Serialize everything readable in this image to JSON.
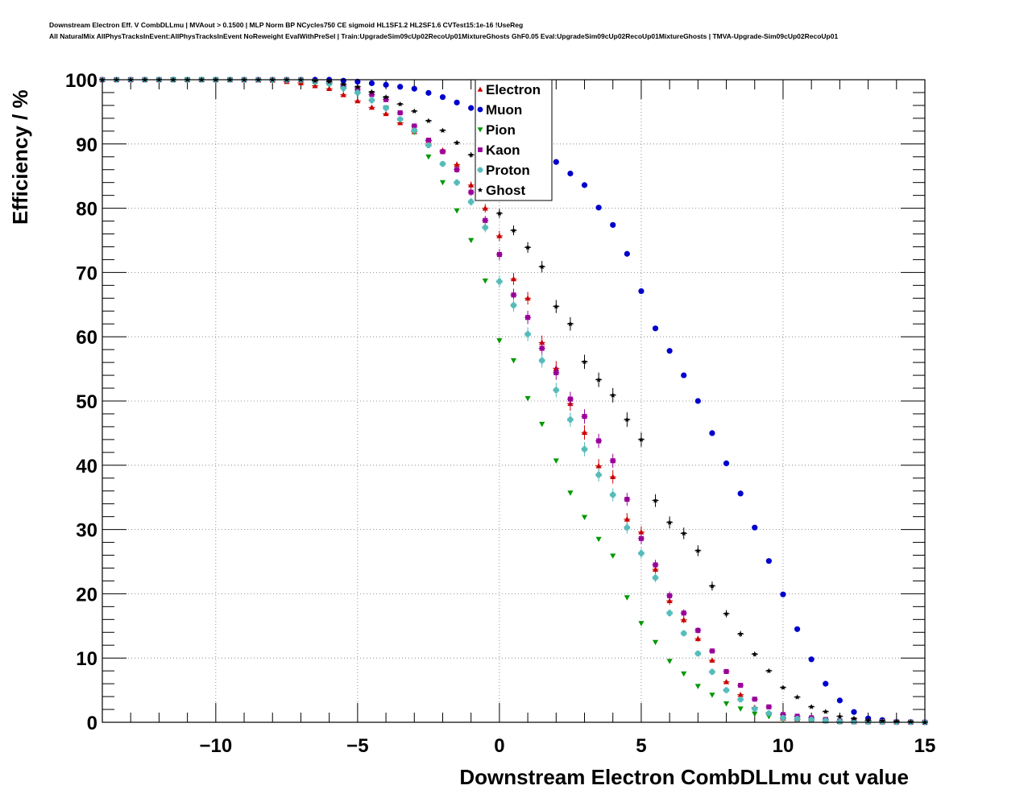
{
  "title_lines": [
    "Downstream Electron Eff. V CombDLLmu | MVAout > 0.1500 | MLP Norm BP NCycles750 CE sigmoid HL1SF1.2 HL2SF1.6 CVTest15:1e-16 !UseReg",
    "All NaturalMix AllPhysTracksInEvent:AllPhysTracksInEvent NoReweight EvalWithPreSel | Train:UpgradeSim09cUp02RecoUp01MixtureGhosts GhF0.05 Eval:UpgradeSim09cUp02RecoUp01MixtureGhosts | TMVA-Upgrade-Sim09cUp02RecoUp01"
  ],
  "chart_data": {
    "type": "scatter",
    "xlabel": "Downstream Electron CombDLLmu cut value",
    "ylabel": "Efficiency / %",
    "xlim": [
      -14,
      15
    ],
    "ylim": [
      0,
      100
    ],
    "xticks": [
      -10,
      -5,
      0,
      5,
      10,
      15
    ],
    "xtick_labels": [
      "−10",
      "−5",
      "0",
      "5",
      "10",
      "15"
    ],
    "yticks": [
      0,
      10,
      20,
      30,
      40,
      50,
      60,
      70,
      80,
      90,
      100
    ],
    "grid": true,
    "legend_position": "top-center",
    "series": [
      {
        "name": "Electron",
        "color": "#cc0000",
        "marker": "triangle-up",
        "has_error_bars": true,
        "points": [
          [
            -14,
            100
          ],
          [
            -12,
            100
          ],
          [
            -10,
            100
          ],
          [
            -8,
            99.9
          ],
          [
            -7,
            99.5
          ],
          [
            -6,
            98.6
          ],
          [
            -5,
            96.7
          ],
          [
            -4,
            94.7
          ],
          [
            -3,
            91.9
          ],
          [
            -2.5,
            90.5
          ],
          [
            -2,
            89
          ],
          [
            -1.5,
            86.8
          ],
          [
            -1,
            83.6
          ],
          [
            -0.5,
            80
          ],
          [
            0,
            75.7
          ],
          [
            0.25,
            72.4
          ],
          [
            0.5,
            69
          ],
          [
            1,
            66
          ],
          [
            1.5,
            59.1
          ],
          [
            2,
            55.1
          ],
          [
            2.25,
            51.3
          ],
          [
            2.75,
            47.9
          ],
          [
            3,
            45.1
          ],
          [
            3.25,
            42.3
          ],
          [
            3.5,
            39.9
          ],
          [
            4,
            38.2
          ],
          [
            4.5,
            31.6
          ],
          [
            5,
            29.6
          ],
          [
            5.5,
            23.8
          ],
          [
            6,
            18.9
          ],
          [
            7,
            13
          ],
          [
            8,
            6.3
          ],
          [
            9,
            2.3
          ],
          [
            10,
            0.6
          ],
          [
            12,
            0.1
          ],
          [
            15,
            0
          ]
        ]
      },
      {
        "name": "Muon",
        "color": "#0000cc",
        "marker": "circle",
        "has_error_bars": false,
        "points": [
          [
            -14,
            100
          ],
          [
            -10,
            100
          ],
          [
            -7,
            100
          ],
          [
            -6,
            100
          ],
          [
            -5,
            99.7
          ],
          [
            -4,
            99.2
          ],
          [
            -3,
            98.6
          ],
          [
            -2,
            97.3
          ],
          [
            -1,
            95.6
          ],
          [
            0,
            93.4
          ],
          [
            1,
            90.4
          ],
          [
            2,
            87.2
          ],
          [
            3,
            83.6
          ],
          [
            3.5,
            80.1
          ],
          [
            4,
            77.4
          ],
          [
            4.5,
            72.9
          ],
          [
            5,
            67.1
          ],
          [
            5.5,
            61.3
          ],
          [
            6,
            57.8
          ],
          [
            6.5,
            54
          ],
          [
            7,
            50
          ],
          [
            7.5,
            45
          ],
          [
            8,
            40.3
          ],
          [
            8.5,
            35.6
          ],
          [
            9,
            30.3
          ],
          [
            9.5,
            25.1
          ],
          [
            10,
            19.9
          ],
          [
            10.5,
            14.5
          ],
          [
            11,
            9.8
          ],
          [
            11.5,
            6
          ],
          [
            12,
            3.4
          ],
          [
            12.5,
            1.6
          ],
          [
            13,
            0.6
          ],
          [
            14,
            0.1
          ],
          [
            15,
            0
          ]
        ]
      },
      {
        "name": "Pion",
        "color": "#009900",
        "marker": "triangle-down",
        "has_error_bars": false,
        "points": [
          [
            -14,
            100
          ],
          [
            -10,
            100
          ],
          [
            -7,
            99.8
          ],
          [
            -6,
            99.2
          ],
          [
            -5,
            97.8
          ],
          [
            -4,
            95.6
          ],
          [
            -3,
            91.8
          ],
          [
            -2.5,
            88
          ],
          [
            -2,
            84
          ],
          [
            -1.5,
            79.6
          ],
          [
            -1,
            75
          ],
          [
            -0.5,
            68.7
          ],
          [
            0,
            59.4
          ],
          [
            0.5,
            56.3
          ],
          [
            1,
            50.4
          ],
          [
            1.5,
            46.4
          ],
          [
            2,
            40.7
          ],
          [
            2.5,
            35.7
          ],
          [
            3,
            31.9
          ],
          [
            3.5,
            28.5
          ],
          [
            4,
            25.9
          ],
          [
            4.5,
            19.4
          ],
          [
            5,
            15.4
          ],
          [
            6,
            9.5
          ],
          [
            7,
            5.6
          ],
          [
            8,
            2.9
          ],
          [
            9,
            1.3
          ],
          [
            10,
            0.5
          ],
          [
            12,
            0.1
          ],
          [
            15,
            0
          ]
        ]
      },
      {
        "name": "Kaon",
        "color": "#990099",
        "marker": "square",
        "has_error_bars": true,
        "points": [
          [
            -14,
            100
          ],
          [
            -10,
            100
          ],
          [
            -7,
            100
          ],
          [
            -6,
            99.5
          ],
          [
            -5,
            98.5
          ],
          [
            -4,
            96.9
          ],
          [
            -3,
            92.8
          ],
          [
            -2.5,
            90.6
          ],
          [
            -2,
            88.8
          ],
          [
            -1.5,
            86
          ],
          [
            -1,
            82.5
          ],
          [
            -0.5,
            78.1
          ],
          [
            0,
            72.8
          ],
          [
            0.5,
            66.5
          ],
          [
            1,
            63
          ],
          [
            1.5,
            58.2
          ],
          [
            2,
            54.4
          ],
          [
            2.5,
            50.3
          ],
          [
            3,
            47.6
          ],
          [
            3.5,
            43.8
          ],
          [
            4,
            40.7
          ],
          [
            4.5,
            34.7
          ],
          [
            5,
            28.6
          ],
          [
            5.5,
            24.5
          ],
          [
            6,
            19.7
          ],
          [
            7,
            14.3
          ],
          [
            8,
            7.9
          ],
          [
            9,
            3.6
          ],
          [
            10,
            1.2
          ],
          [
            12,
            0.2
          ],
          [
            15,
            0
          ]
        ]
      },
      {
        "name": "Proton",
        "color": "#55bbbb",
        "marker": "cross",
        "has_error_bars": true,
        "points": [
          [
            -14,
            100
          ],
          [
            -10,
            100
          ],
          [
            -7,
            100
          ],
          [
            -6,
            99.4
          ],
          [
            -5,
            98
          ],
          [
            -4,
            95.6
          ],
          [
            -3,
            92.1
          ],
          [
            -2.5,
            89.8
          ],
          [
            -2,
            86.9
          ],
          [
            -1.5,
            84
          ],
          [
            -1,
            81
          ],
          [
            -0.5,
            77
          ],
          [
            0,
            68.6
          ],
          [
            0.5,
            64.9
          ],
          [
            1,
            60.4
          ],
          [
            1.5,
            56.3
          ],
          [
            2,
            51.7
          ],
          [
            2.5,
            47.1
          ],
          [
            3,
            42.5
          ],
          [
            3.5,
            38.5
          ],
          [
            4,
            35.4
          ],
          [
            4.5,
            30.3
          ],
          [
            5,
            26.3
          ],
          [
            5.5,
            22.5
          ],
          [
            6,
            17
          ],
          [
            7,
            10.7
          ],
          [
            8,
            5
          ],
          [
            9,
            2.1
          ],
          [
            10,
            0.7
          ],
          [
            12,
            0.1
          ],
          [
            15,
            0
          ]
        ]
      },
      {
        "name": "Ghost",
        "color": "#000000",
        "marker": "star",
        "has_error_bars": true,
        "points": [
          [
            -14,
            100
          ],
          [
            -10,
            100
          ],
          [
            -7,
            100
          ],
          [
            -6,
            99.7
          ],
          [
            -5,
            98.9
          ],
          [
            -4,
            97.3
          ],
          [
            -3,
            95.1
          ],
          [
            -2,
            92.1
          ],
          [
            -1,
            88.3
          ],
          [
            -0.5,
            84.5
          ],
          [
            0,
            79.2
          ],
          [
            1,
            73.9
          ],
          [
            1.5,
            70.9
          ],
          [
            2,
            64.7
          ],
          [
            2.5,
            62
          ],
          [
            3,
            56.1
          ],
          [
            3.5,
            53.3
          ],
          [
            4,
            50.9
          ],
          [
            4.5,
            47.1
          ],
          [
            5,
            44
          ],
          [
            5.5,
            34.5
          ],
          [
            6,
            31.1
          ],
          [
            6.5,
            29.4
          ],
          [
            7,
            26.7
          ],
          [
            7.5,
            21.2
          ],
          [
            8,
            16.9
          ],
          [
            9,
            10.6
          ],
          [
            10,
            5.4
          ],
          [
            11,
            2.4
          ],
          [
            12,
            0.9
          ],
          [
            13,
            0.3
          ],
          [
            15,
            0
          ]
        ]
      }
    ]
  }
}
